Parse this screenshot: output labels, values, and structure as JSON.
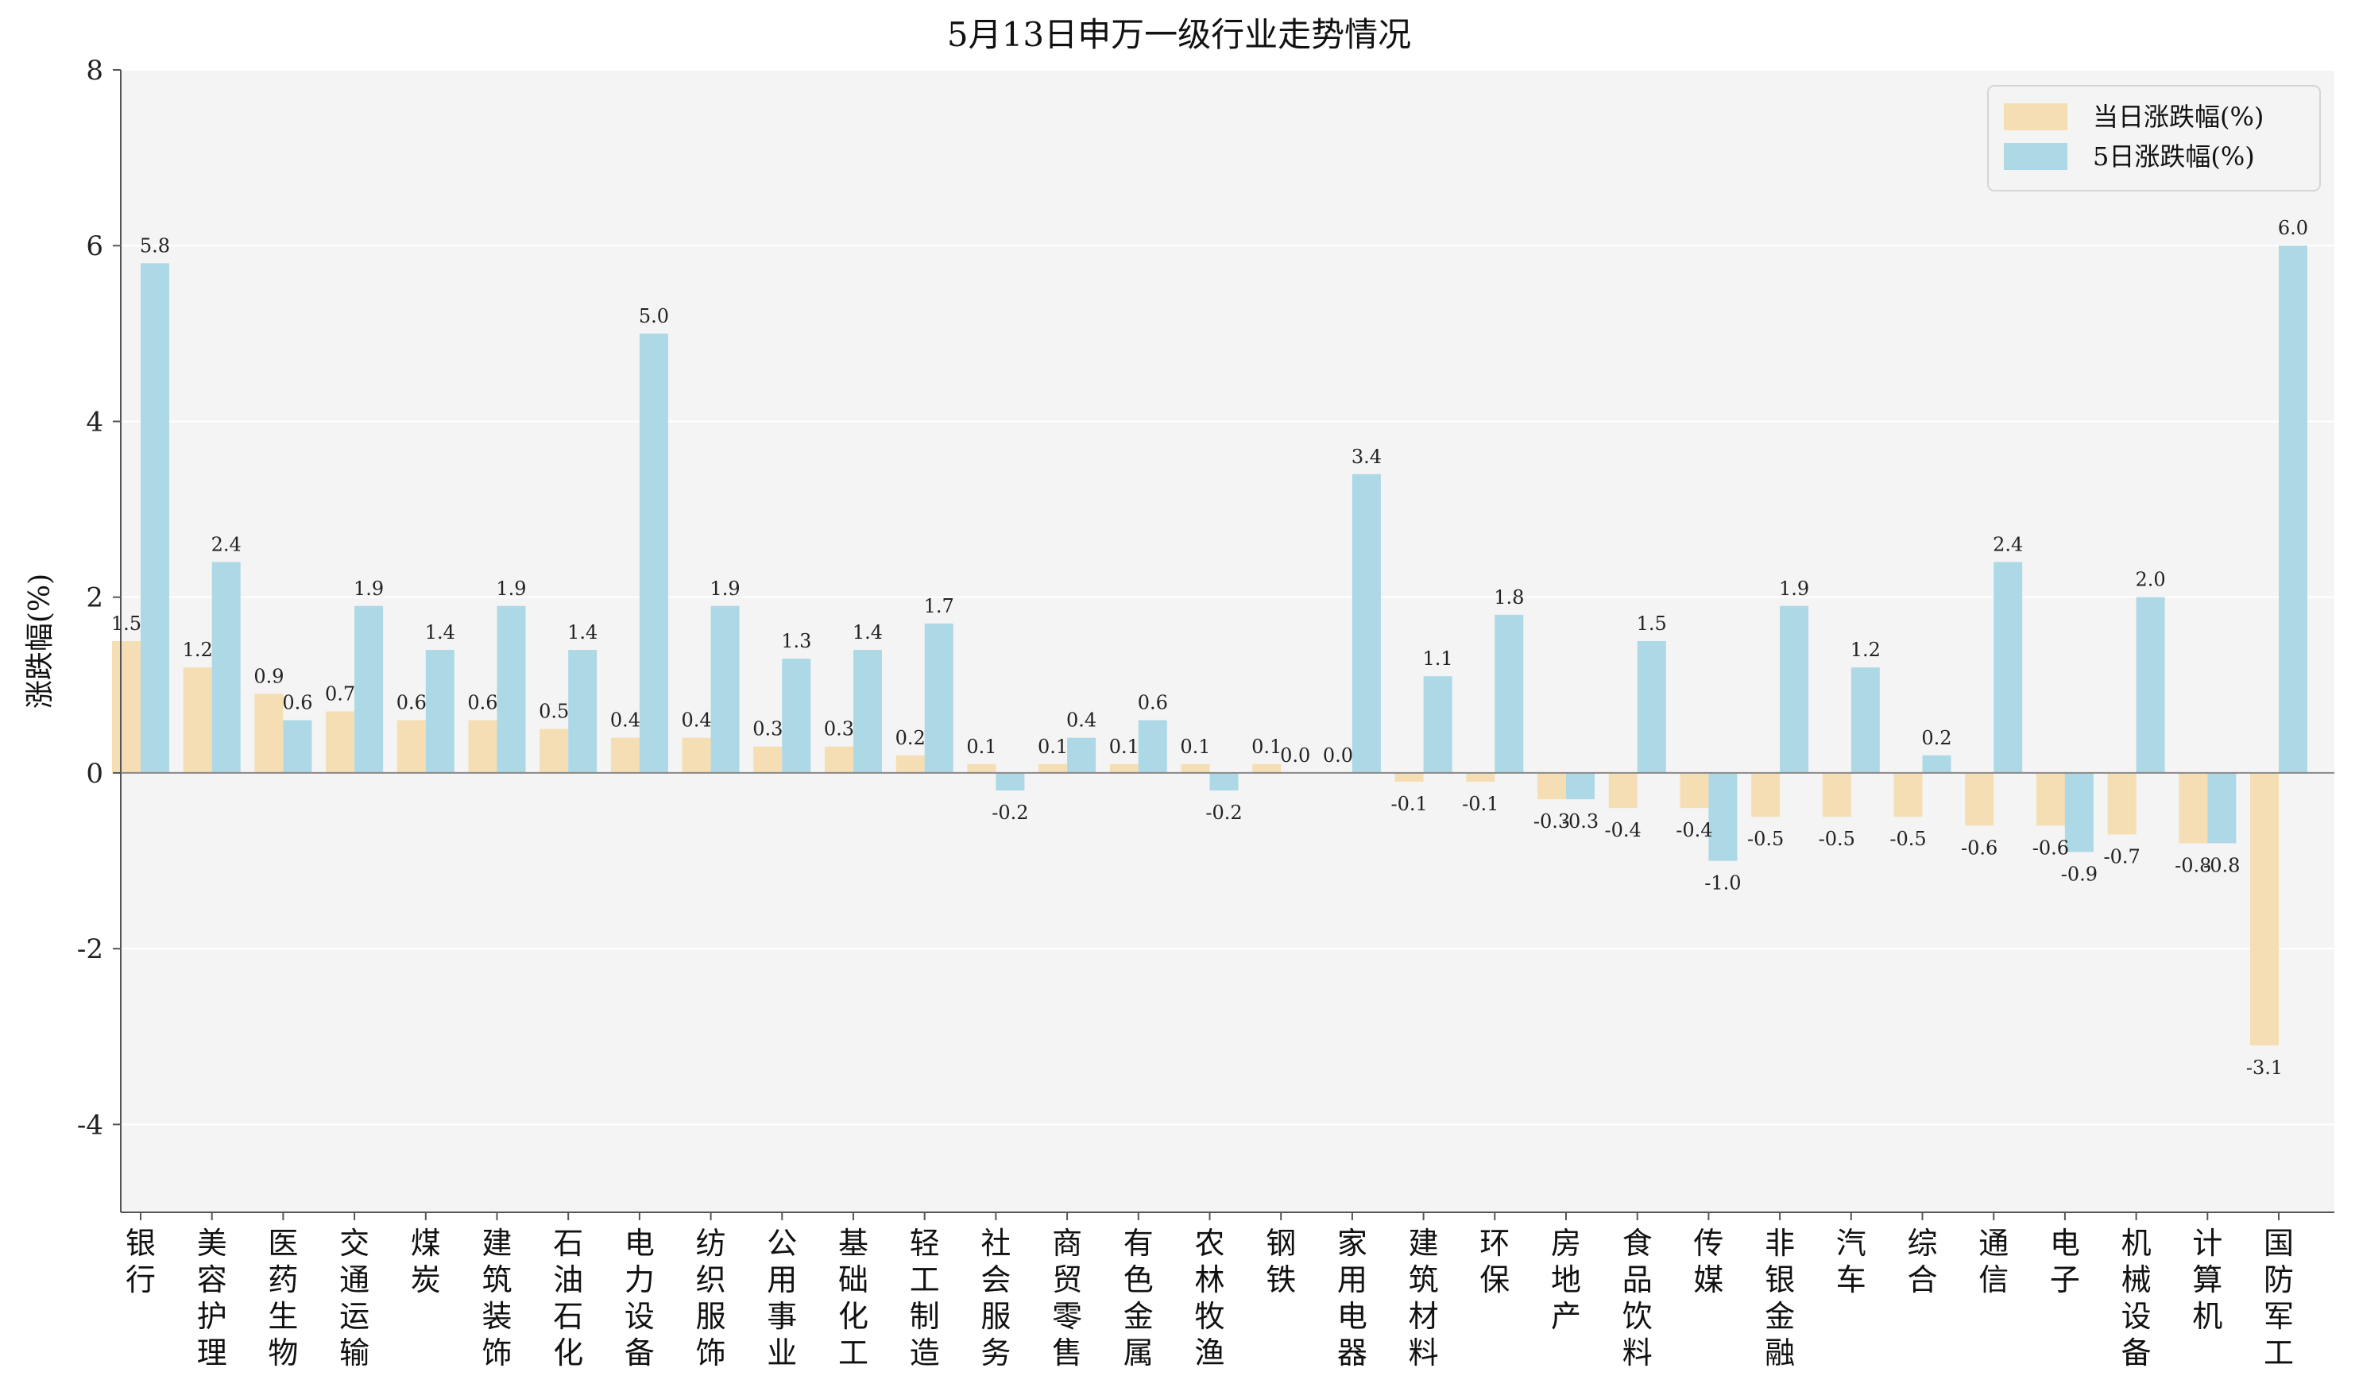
{
  "chart_data": {
    "type": "bar",
    "title": "5月13日申万一级行业走势情况",
    "ylabel": "涨跌幅(%)",
    "xlabel": "",
    "ylim": [
      -5,
      8
    ],
    "yticks": [
      "-4",
      "-2",
      "0",
      "2",
      "4",
      "6",
      "8"
    ],
    "grid": "horizontal",
    "legend_position": "top-right",
    "categories": [
      "银行",
      "美容护理",
      "医药生物",
      "交通运输",
      "煤炭",
      "建筑装饰",
      "石油石化",
      "电力设备",
      "纺织服饰",
      "公用事业",
      "基础化工",
      "轻工制造",
      "社会服务",
      "商贸零售",
      "有色金属",
      "农林牧渔",
      "钢铁",
      "家用电器",
      "建筑材料",
      "环保",
      "房地产",
      "食品饮料",
      "传媒",
      "非银金融",
      "汽车",
      "综合",
      "通信",
      "电子",
      "机械设备",
      "计算机",
      "国防军工"
    ],
    "series": [
      {
        "name": "当日涨跌幅(%)",
        "color": "#f5deb3",
        "values": [
          1.5,
          1.2,
          0.9,
          0.7,
          0.6,
          0.6,
          0.5,
          0.4,
          0.4,
          0.3,
          0.3,
          0.2,
          0.1,
          0.1,
          0.1,
          0.1,
          0.1,
          0.0,
          -0.1,
          -0.1,
          -0.3,
          -0.4,
          -0.4,
          -0.5,
          -0.5,
          -0.5,
          -0.6,
          -0.6,
          -0.7,
          -0.8,
          -3.1
        ],
        "labels": [
          "1.5",
          "1.2",
          "0.9",
          "0.7",
          "0.6",
          "0.6",
          "0.5",
          "0.4",
          "0.4",
          "0.3",
          "0.3",
          "0.2",
          "0.1",
          "0.1",
          "0.1",
          "0.1",
          "0.1",
          "0.0",
          "-0.1",
          "-0.1",
          "-0.3",
          "-0.4",
          "-0.4",
          "-0.5",
          "-0.5",
          "-0.5",
          "-0.6",
          "-0.6",
          "-0.7",
          "-0.8",
          "-3.1"
        ]
      },
      {
        "name": "5日涨跌幅(%)",
        "color": "#add8e6",
        "values": [
          5.8,
          2.4,
          0.6,
          1.9,
          1.4,
          1.9,
          1.4,
          5.0,
          1.9,
          1.3,
          1.4,
          1.7,
          -0.2,
          0.4,
          0.6,
          -0.2,
          0.0,
          3.4,
          1.1,
          1.8,
          -0.3,
          1.5,
          -1.0,
          1.9,
          1.2,
          0.2,
          2.4,
          -0.9,
          2.0,
          -0.8,
          6.0
        ],
        "labels": [
          "5.8",
          "2.4",
          "0.6",
          "1.9",
          "1.4",
          "1.9",
          "1.4",
          "5.0",
          "1.9",
          "1.3",
          "1.4",
          "1.7",
          "-0.2",
          "0.4",
          "0.6",
          "-0.2",
          "0.0",
          "3.4",
          "1.1",
          "1.8",
          "-0.3",
          "1.5",
          "-1.0",
          "1.9",
          "1.2",
          "0.2",
          "2.4",
          "-0.9",
          "2.0",
          "-0.8",
          "6.0"
        ]
      }
    ],
    "colors": {
      "plot_background": "#f4f4f4",
      "grid": "#ffffff",
      "zero_line": "#888888"
    }
  }
}
